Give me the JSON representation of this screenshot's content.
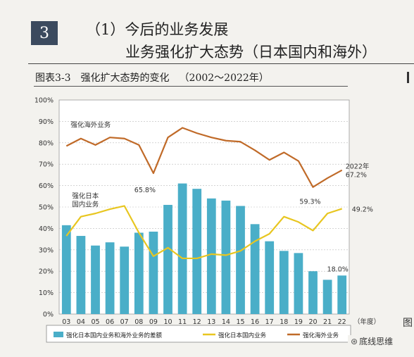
{
  "header": {
    "badge": "3",
    "section_title": "（1）今后的业务发展",
    "section_subtitle": "业务强化扩大态势（日本国内和海外）"
  },
  "figure": {
    "number": "图表3-3",
    "title": "强化扩大态势的变化",
    "period": "（2002～2022年）"
  },
  "watermark": {
    "icon": "wechat-icon",
    "text": "底线思维"
  },
  "chart_data": {
    "type": "bar",
    "categories": [
      "03",
      "04",
      "05",
      "06",
      "07",
      "08",
      "09",
      "10",
      "11",
      "12",
      "13",
      "14",
      "15",
      "16",
      "17",
      "18",
      "19",
      "20",
      "21",
      "22"
    ],
    "x_unit_label": "（年度）",
    "ylim": [
      0,
      100
    ],
    "yticks": [
      "0%",
      "10%",
      "20%",
      "30%",
      "40%",
      "50%",
      "60%",
      "70%",
      "80%",
      "90%",
      "100%"
    ],
    "grid": true,
    "legend_position": "bottom",
    "series": [
      {
        "name": "强化日本国内业务和海外业务的差额",
        "type": "bar",
        "color": "#4aaec8",
        "values": [
          41.5,
          36.5,
          32,
          33.5,
          31.5,
          38,
          38.5,
          51,
          61,
          58.5,
          54,
          53,
          50.5,
          42,
          34,
          29.5,
          28.5,
          20,
          16,
          18
        ]
      },
      {
        "name": "强化日本国内业务",
        "type": "line",
        "color": "#e8c620",
        "values": [
          36.5,
          45.5,
          47,
          49,
          50.5,
          38,
          27,
          31,
          26,
          26,
          28,
          27.5,
          29.5,
          34,
          37.5,
          45.5,
          43,
          39,
          47,
          49.2
        ]
      },
      {
        "name": "强化海外业务",
        "type": "line",
        "color": "#c06a28",
        "values": [
          78.5,
          82,
          79,
          82.5,
          82,
          79,
          65.8,
          82.5,
          87,
          84.5,
          82.5,
          81,
          80.5,
          76.5,
          72,
          75.5,
          71.5,
          59.3,
          63.5,
          67.2
        ]
      }
    ],
    "annotations": [
      {
        "text": "强化海外业务",
        "series": 2
      },
      {
        "text": "强化日本\n国内业务",
        "series": 1
      },
      {
        "text": "65.8%",
        "series": 2,
        "index": 6
      },
      {
        "text": "59.3%",
        "series": 2,
        "index": 17
      },
      {
        "text": "2022年\n67.2%",
        "series": 2,
        "index": 19
      },
      {
        "text": "49.2%",
        "series": 1,
        "index": 19
      },
      {
        "text": "18.0%",
        "series": 0,
        "index": 19
      }
    ]
  }
}
